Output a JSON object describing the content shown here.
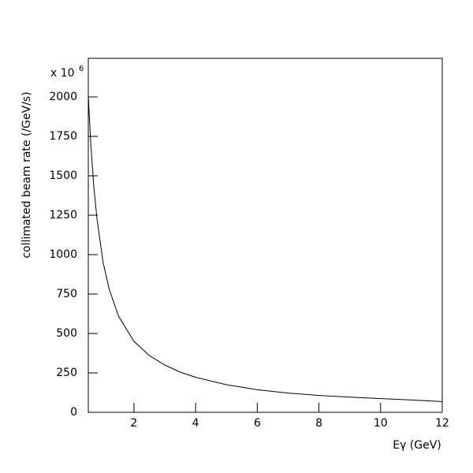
{
  "chart_data": {
    "type": "line",
    "x_label": "Eγ (GeV)",
    "y_label": "collimated beam rate (/GeV/s)",
    "y_multiplier": "x 10",
    "y_multiplier_exp": "6",
    "x": [
      0.52,
      0.6,
      0.7,
      0.8,
      1.0,
      1.2,
      1.5,
      2,
      2.5,
      3,
      3.5,
      4,
      5,
      6,
      7,
      8,
      9,
      10,
      11,
      12
    ],
    "series": [
      {
        "color": "#000000",
        "values": [
          2010,
          1700,
          1430,
          1230,
          950,
          780,
          610,
          450,
          360,
          300,
          255,
          222,
          175,
          143,
          122,
          107,
          96,
          87,
          78,
          68
        ]
      }
    ],
    "xlim": [
      0.52,
      12
    ],
    "xticks": [
      2,
      4,
      6,
      8,
      10,
      12
    ],
    "ylim": [
      0,
      2245
    ],
    "yticks": [
      0,
      250,
      500,
      750,
      1000,
      1250,
      1500,
      1750,
      2000
    ],
    "grid": false
  }
}
